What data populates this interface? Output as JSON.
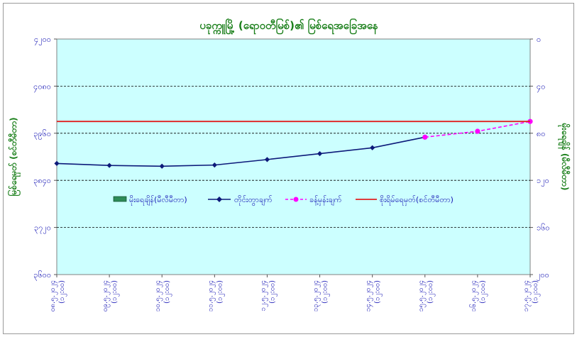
{
  "chart_data": {
    "type": "line",
    "title": "ပခုက္ကူမြို့ (ရောဝတီမြစ်)၏ မြစ်ရေအခြေအနေ",
    "ylabel": "မြစ်ရေမှတ် (စင်တီမီတာ)",
    "y2label": "မိုးရေချိန် (မီလီမီတာ)",
    "ylim": [
      3600,
      4200
    ],
    "y_ticks": [
      "၃၆၀၀",
      "၃၇၂၀",
      "၃၈၄၀",
      "၃၉၆၀",
      "၄၀၈၀",
      "၄၂၀၀"
    ],
    "y2lim": [
      0,
      200
    ],
    "y2_reversed": true,
    "y2_ticks": [
      "၀",
      "၄၀",
      "၈၀",
      "၁၂၀",
      "၁၆၀",
      "၂၀၀"
    ],
    "categories": [
      "၀၈.၅.၂၀၂၄ (၁၂:၀၀)",
      "၀၉.၅.၂၀၂၄ (၁၂:၀၀)",
      "၁၀.၅.၂၀၂၄ (၁၂:၀၀)",
      "၁၁.၅.၂၀၂၄ (၁၂:၀၀)",
      "၁၂.၅.၂၀၂၄ (၁၂:၀၀)",
      "၁၃.၅.၂၀၂၄ (၁၂:၀၀)",
      "၁၄.၅.၂၀၂၄ (၁၂:၀၀)",
      "၁၅.၅.၂၀၂၄ (၁၂:၀၀)",
      "၁၆.၅.၂၀၂၄ (၁၂:၀၀)",
      "၁၇.၅.၂၀၂၄ (၁၂:၀၀)"
    ],
    "series": [
      {
        "name": "တိုင်းတွာချက်",
        "color": "#0d1a7a",
        "marker": "diamond",
        "values": [
          3883,
          3878,
          3876,
          3879,
          3893,
          3908,
          3923,
          3950,
          null,
          null
        ]
      },
      {
        "name": "ခန့်မှန်းချက်",
        "color": "#ff00ff",
        "marker": "circle",
        "dashed": true,
        "values": [
          null,
          null,
          null,
          null,
          null,
          null,
          null,
          3950,
          3965,
          3990
        ]
      },
      {
        "name": "စိုးရိမ်ရေမှတ်(စင်တီမီတာ)",
        "color": "#e02020",
        "marker": "none",
        "constant": 3990
      }
    ],
    "bar_series": {
      "name": "မိုးရေချိန်(မီလီမီတာ)",
      "color": "#2e8b57",
      "values": []
    },
    "grid": true,
    "legend_position": "center"
  }
}
